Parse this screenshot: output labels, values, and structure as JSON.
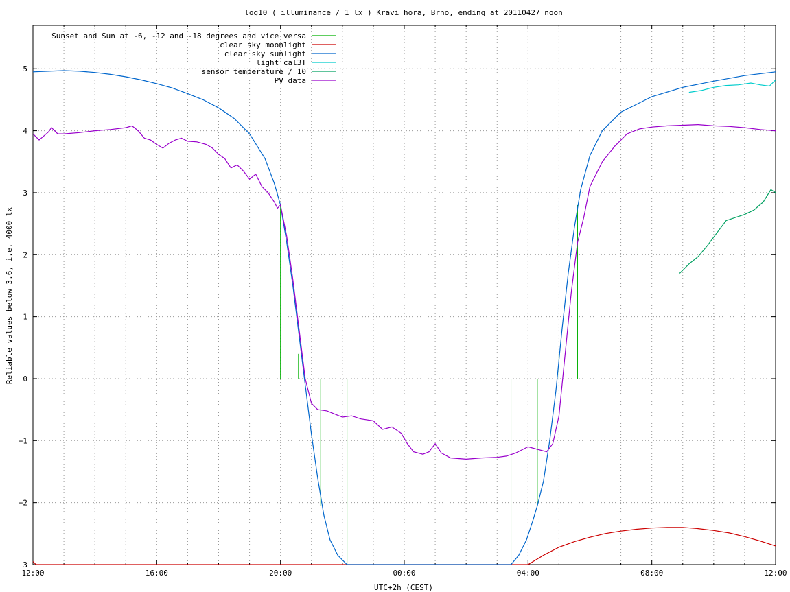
{
  "chart_data": {
    "type": "line",
    "title": "log10 ( illuminance / 1 lx ) Kravi hora, Brno, ending at 20110427 noon",
    "xlabel": "UTC+2h (CEST)",
    "ylabel": "Reliable values below 3.6, i.e. 4000 lx",
    "x_unit": "hours after 12:00 (UTC+2h)",
    "xlim": [
      0,
      24
    ],
    "ylim": [
      -3,
      5.7
    ],
    "x_ticks": [
      {
        "pos": 0,
        "label": "12:00"
      },
      {
        "pos": 4,
        "label": "16:00"
      },
      {
        "pos": 8,
        "label": "20:00"
      },
      {
        "pos": 12,
        "label": "00:00"
      },
      {
        "pos": 16,
        "label": "04:00"
      },
      {
        "pos": 20,
        "label": "08:00"
      },
      {
        "pos": 24,
        "label": "12:00"
      }
    ],
    "y_ticks": [
      5,
      4,
      3,
      2,
      1,
      0,
      -1,
      -2,
      -3
    ],
    "grid": true,
    "legend_position": "top-left",
    "series": [
      {
        "name": "Sunset and Sun at -6, -12 and -18 degrees and vice versa",
        "color": "#00b000",
        "kind": "impulses",
        "markers": [
          {
            "x": 8.0,
            "top": 2.8
          },
          {
            "x": 8.58,
            "top": 0.4
          },
          {
            "x": 9.3,
            "top": -2.05
          },
          {
            "x": 10.15,
            "top": -3.0
          },
          {
            "x": 15.45,
            "top": -3.0
          },
          {
            "x": 16.3,
            "top": -2.05
          },
          {
            "x": 17.0,
            "top": 0.4
          },
          {
            "x": 17.6,
            "top": 2.8
          }
        ]
      },
      {
        "name": "clear sky moonlight",
        "color": "#cc0000",
        "points": [
          [
            0,
            -2.95
          ],
          [
            0.1,
            -3.0
          ],
          [
            16.0,
            -3.0
          ],
          [
            16.5,
            -2.85
          ],
          [
            17,
            -2.72
          ],
          [
            17.5,
            -2.63
          ],
          [
            18,
            -2.56
          ],
          [
            18.5,
            -2.5
          ],
          [
            19,
            -2.46
          ],
          [
            19.5,
            -2.43
          ],
          [
            20,
            -2.41
          ],
          [
            20.5,
            -2.4
          ],
          [
            21,
            -2.4
          ],
          [
            21.5,
            -2.42
          ],
          [
            22,
            -2.45
          ],
          [
            22.5,
            -2.49
          ],
          [
            23,
            -2.55
          ],
          [
            23.5,
            -2.62
          ],
          [
            24,
            -2.7
          ]
        ]
      },
      {
        "name": "clear sky sunlight",
        "color": "#0066cc",
        "points": [
          [
            0,
            4.95
          ],
          [
            0.5,
            4.96
          ],
          [
            1,
            4.97
          ],
          [
            1.5,
            4.96
          ],
          [
            2,
            4.94
          ],
          [
            2.5,
            4.91
          ],
          [
            3,
            4.87
          ],
          [
            3.5,
            4.82
          ],
          [
            4,
            4.76
          ],
          [
            4.5,
            4.69
          ],
          [
            5,
            4.6
          ],
          [
            5.5,
            4.5
          ],
          [
            6,
            4.37
          ],
          [
            6.5,
            4.2
          ],
          [
            7,
            3.95
          ],
          [
            7.5,
            3.55
          ],
          [
            7.8,
            3.15
          ],
          [
            8.0,
            2.8
          ],
          [
            8.2,
            2.2
          ],
          [
            8.4,
            1.5
          ],
          [
            8.6,
            0.7
          ],
          [
            8.8,
            -0.1
          ],
          [
            9.0,
            -0.9
          ],
          [
            9.2,
            -1.6
          ],
          [
            9.4,
            -2.2
          ],
          [
            9.6,
            -2.6
          ],
          [
            9.85,
            -2.85
          ],
          [
            10.15,
            -3.0
          ],
          [
            15.45,
            -3.0
          ],
          [
            15.7,
            -2.85
          ],
          [
            15.95,
            -2.6
          ],
          [
            16.15,
            -2.3
          ],
          [
            16.3,
            -2.05
          ],
          [
            16.5,
            -1.65
          ],
          [
            16.7,
            -1.0
          ],
          [
            16.9,
            -0.2
          ],
          [
            17.1,
            0.8
          ],
          [
            17.3,
            1.7
          ],
          [
            17.5,
            2.45
          ],
          [
            17.7,
            3.05
          ],
          [
            18.0,
            3.6
          ],
          [
            18.4,
            4.0
          ],
          [
            19,
            4.3
          ],
          [
            20,
            4.55
          ],
          [
            21,
            4.7
          ],
          [
            22,
            4.8
          ],
          [
            23,
            4.89
          ],
          [
            24,
            4.95
          ]
        ]
      },
      {
        "name": "light_cal3T",
        "color": "#00cccc",
        "points": [
          [
            21.2,
            4.62
          ],
          [
            21.6,
            4.65
          ],
          [
            22,
            4.7
          ],
          [
            22.4,
            4.73
          ],
          [
            22.8,
            4.74
          ],
          [
            23.2,
            4.77
          ],
          [
            23.5,
            4.74
          ],
          [
            23.8,
            4.72
          ],
          [
            24,
            4.82
          ]
        ]
      },
      {
        "name": "sensor temperature / 10",
        "color": "#00a060",
        "points": [
          [
            20.9,
            1.7
          ],
          [
            21.2,
            1.85
          ],
          [
            21.5,
            1.97
          ],
          [
            21.8,
            2.15
          ],
          [
            22.1,
            2.35
          ],
          [
            22.4,
            2.55
          ],
          [
            22.7,
            2.6
          ],
          [
            23.0,
            2.65
          ],
          [
            23.3,
            2.72
          ],
          [
            23.6,
            2.85
          ],
          [
            23.85,
            3.05
          ],
          [
            24,
            3.0
          ]
        ]
      },
      {
        "name": "PV data",
        "color": "#9900cc",
        "points": [
          [
            0,
            3.95
          ],
          [
            0.2,
            3.85
          ],
          [
            0.5,
            3.98
          ],
          [
            0.6,
            4.05
          ],
          [
            0.8,
            3.95
          ],
          [
            1,
            3.95
          ],
          [
            1.5,
            3.97
          ],
          [
            2,
            4.0
          ],
          [
            2.5,
            4.02
          ],
          [
            3,
            4.05
          ],
          [
            3.2,
            4.08
          ],
          [
            3.4,
            4.0
          ],
          [
            3.6,
            3.88
          ],
          [
            3.8,
            3.85
          ],
          [
            4,
            3.78
          ],
          [
            4.2,
            3.72
          ],
          [
            4.4,
            3.8
          ],
          [
            4.6,
            3.85
          ],
          [
            4.8,
            3.88
          ],
          [
            5,
            3.83
          ],
          [
            5.3,
            3.82
          ],
          [
            5.6,
            3.78
          ],
          [
            5.8,
            3.72
          ],
          [
            6,
            3.62
          ],
          [
            6.2,
            3.55
          ],
          [
            6.4,
            3.4
          ],
          [
            6.6,
            3.45
          ],
          [
            6.8,
            3.35
          ],
          [
            7,
            3.22
          ],
          [
            7.2,
            3.3
          ],
          [
            7.4,
            3.1
          ],
          [
            7.6,
            3.0
          ],
          [
            7.8,
            2.85
          ],
          [
            7.9,
            2.75
          ],
          [
            8.0,
            2.8
          ],
          [
            8.2,
            2.3
          ],
          [
            8.4,
            1.6
          ],
          [
            8.6,
            0.8
          ],
          [
            8.8,
            0.0
          ],
          [
            9.0,
            -0.4
          ],
          [
            9.2,
            -0.5
          ],
          [
            9.5,
            -0.52
          ],
          [
            9.8,
            -0.58
          ],
          [
            10.0,
            -0.62
          ],
          [
            10.3,
            -0.6
          ],
          [
            10.6,
            -0.65
          ],
          [
            11.0,
            -0.68
          ],
          [
            11.3,
            -0.82
          ],
          [
            11.6,
            -0.78
          ],
          [
            11.9,
            -0.88
          ],
          [
            12.1,
            -1.05
          ],
          [
            12.3,
            -1.18
          ],
          [
            12.6,
            -1.22
          ],
          [
            12.8,
            -1.18
          ],
          [
            13.0,
            -1.05
          ],
          [
            13.2,
            -1.2
          ],
          [
            13.5,
            -1.28
          ],
          [
            14,
            -1.3
          ],
          [
            14.5,
            -1.28
          ],
          [
            15,
            -1.27
          ],
          [
            15.3,
            -1.25
          ],
          [
            15.6,
            -1.2
          ],
          [
            16.0,
            -1.1
          ],
          [
            16.3,
            -1.14
          ],
          [
            16.6,
            -1.18
          ],
          [
            16.8,
            -1.05
          ],
          [
            17.0,
            -0.6
          ],
          [
            17.2,
            0.4
          ],
          [
            17.4,
            1.4
          ],
          [
            17.6,
            2.2
          ],
          [
            17.8,
            2.6
          ],
          [
            18.0,
            3.1
          ],
          [
            18.4,
            3.5
          ],
          [
            18.8,
            3.75
          ],
          [
            19.2,
            3.95
          ],
          [
            19.6,
            4.03
          ],
          [
            20,
            4.06
          ],
          [
            20.5,
            4.08
          ],
          [
            21,
            4.09
          ],
          [
            21.5,
            4.1
          ],
          [
            22,
            4.08
          ],
          [
            22.5,
            4.07
          ],
          [
            23,
            4.05
          ],
          [
            23.5,
            4.02
          ],
          [
            24,
            4.0
          ]
        ]
      }
    ]
  }
}
